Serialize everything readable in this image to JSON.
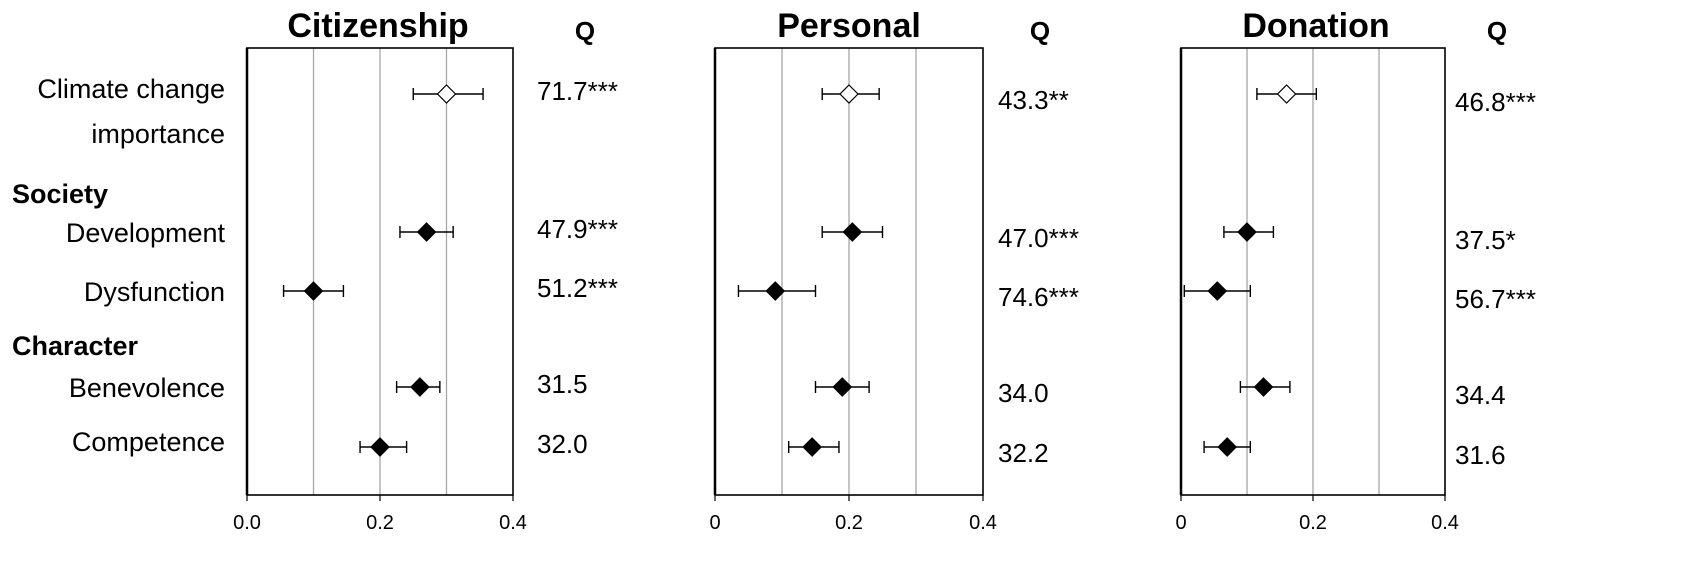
{
  "chart_data": {
    "type": "forest",
    "q_header": "Q",
    "rows": [
      {
        "key": "climate",
        "label_lines": [
          "Climate change",
          "importance"
        ],
        "marker": "open"
      },
      {
        "key": "group_society",
        "label": "Society",
        "is_group": true
      },
      {
        "key": "development",
        "label": "Development",
        "marker": "filled"
      },
      {
        "key": "dysfunction",
        "label": "Dysfunction",
        "marker": "filled"
      },
      {
        "key": "group_character",
        "label": "Character",
        "is_group": true
      },
      {
        "key": "benevolence",
        "label": "Benevolence",
        "marker": "filled"
      },
      {
        "key": "competence",
        "label": "Competence",
        "marker": "filled"
      }
    ],
    "panels": [
      {
        "title": "Citizenship",
        "xlim": [
          0,
          0.4
        ],
        "xticks": [
          "0.0",
          "0.2",
          "0.4"
        ],
        "points": [
          {
            "row": "climate",
            "estimate": 0.3,
            "ci": [
              0.25,
              0.355
            ],
            "q": "71.7***"
          },
          {
            "row": "development",
            "estimate": 0.27,
            "ci": [
              0.23,
              0.31
            ],
            "q": "47.9***"
          },
          {
            "row": "dysfunction",
            "estimate": 0.1,
            "ci": [
              0.055,
              0.145
            ],
            "q": "51.2***"
          },
          {
            "row": "benevolence",
            "estimate": 0.26,
            "ci": [
              0.225,
              0.29
            ],
            "q": "31.5"
          },
          {
            "row": "competence",
            "estimate": 0.2,
            "ci": [
              0.17,
              0.24
            ],
            "q": "32.0"
          }
        ]
      },
      {
        "title": "Personal",
        "xlim": [
          0,
          0.4
        ],
        "xticks": [
          "0",
          "0.2",
          "0.4"
        ],
        "points": [
          {
            "row": "climate",
            "estimate": 0.2,
            "ci": [
              0.16,
              0.245
            ],
            "q": "43.3**"
          },
          {
            "row": "development",
            "estimate": 0.205,
            "ci": [
              0.16,
              0.25
            ],
            "q": "47.0***"
          },
          {
            "row": "dysfunction",
            "estimate": 0.09,
            "ci": [
              0.035,
              0.15
            ],
            "q": "74.6***"
          },
          {
            "row": "benevolence",
            "estimate": 0.19,
            "ci": [
              0.15,
              0.23
            ],
            "q": "34.0"
          },
          {
            "row": "competence",
            "estimate": 0.145,
            "ci": [
              0.11,
              0.185
            ],
            "q": "32.2"
          }
        ]
      },
      {
        "title": "Donation",
        "xlim": [
          0,
          0.4
        ],
        "xticks": [
          "0",
          "0.2",
          "0.4"
        ],
        "points": [
          {
            "row": "climate",
            "estimate": 0.16,
            "ci": [
              0.115,
              0.205
            ],
            "q": "46.8***"
          },
          {
            "row": "development",
            "estimate": 0.1,
            "ci": [
              0.065,
              0.14
            ],
            "q": "37.5*"
          },
          {
            "row": "dysfunction",
            "estimate": 0.055,
            "ci": [
              0.005,
              0.105
            ],
            "q": "56.7***"
          },
          {
            "row": "benevolence",
            "estimate": 0.125,
            "ci": [
              0.09,
              0.165
            ],
            "q": "34.4"
          },
          {
            "row": "competence",
            "estimate": 0.07,
            "ci": [
              0.035,
              0.105
            ],
            "q": "31.6"
          }
        ]
      }
    ],
    "grid": true,
    "colors": {
      "axis": "#000000",
      "grid": "#a6a6a6",
      "marker_fill": "#000000",
      "marker_open": "#ffffff"
    }
  }
}
